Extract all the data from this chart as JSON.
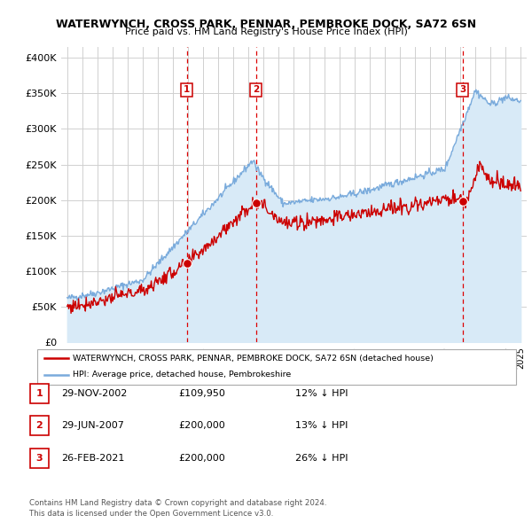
{
  "title1": "WATERWYNCH, CROSS PARK, PENNAR, PEMBROKE DOCK, SA72 6SN",
  "title2": "Price paid vs. HM Land Registry's House Price Index (HPI)",
  "ylabel_ticks": [
    "£0",
    "£50K",
    "£100K",
    "£150K",
    "£200K",
    "£250K",
    "£300K",
    "£350K",
    "£400K"
  ],
  "ytick_vals": [
    0,
    50000,
    100000,
    150000,
    200000,
    250000,
    300000,
    350000,
    400000
  ],
  "ylim": [
    0,
    415000
  ],
  "xlim_start": 1994.6,
  "xlim_end": 2025.4,
  "sale_color": "#cc0000",
  "hpi_color": "#7aabdc",
  "hpi_fill_color": "#d8eaf7",
  "vline_color": "#dd0000",
  "grid_color": "#d0d0d0",
  "bg_color": "#ffffff",
  "legend_label_sale": "WATERWYNCH, CROSS PARK, PENNAR, PEMBROKE DOCK, SA72 6SN (detached house)",
  "legend_label_hpi": "HPI: Average price, detached house, Pembrokeshire",
  "transactions": [
    {
      "num": 1,
      "date": "29-NOV-2002",
      "price": "£109,950",
      "pct": "12% ↓ HPI",
      "x": 2002.91
    },
    {
      "num": 2,
      "date": "29-JUN-2007",
      "price": "£200,000",
      "pct": "13% ↓ HPI",
      "x": 2007.49
    },
    {
      "num": 3,
      "date": "26-FEB-2021",
      "price": "£200,000",
      "pct": "26% ↓ HPI",
      "x": 2021.16
    }
  ],
  "footer1": "Contains HM Land Registry data © Crown copyright and database right 2024.",
  "footer2": "This data is licensed under the Open Government Licence v3.0."
}
